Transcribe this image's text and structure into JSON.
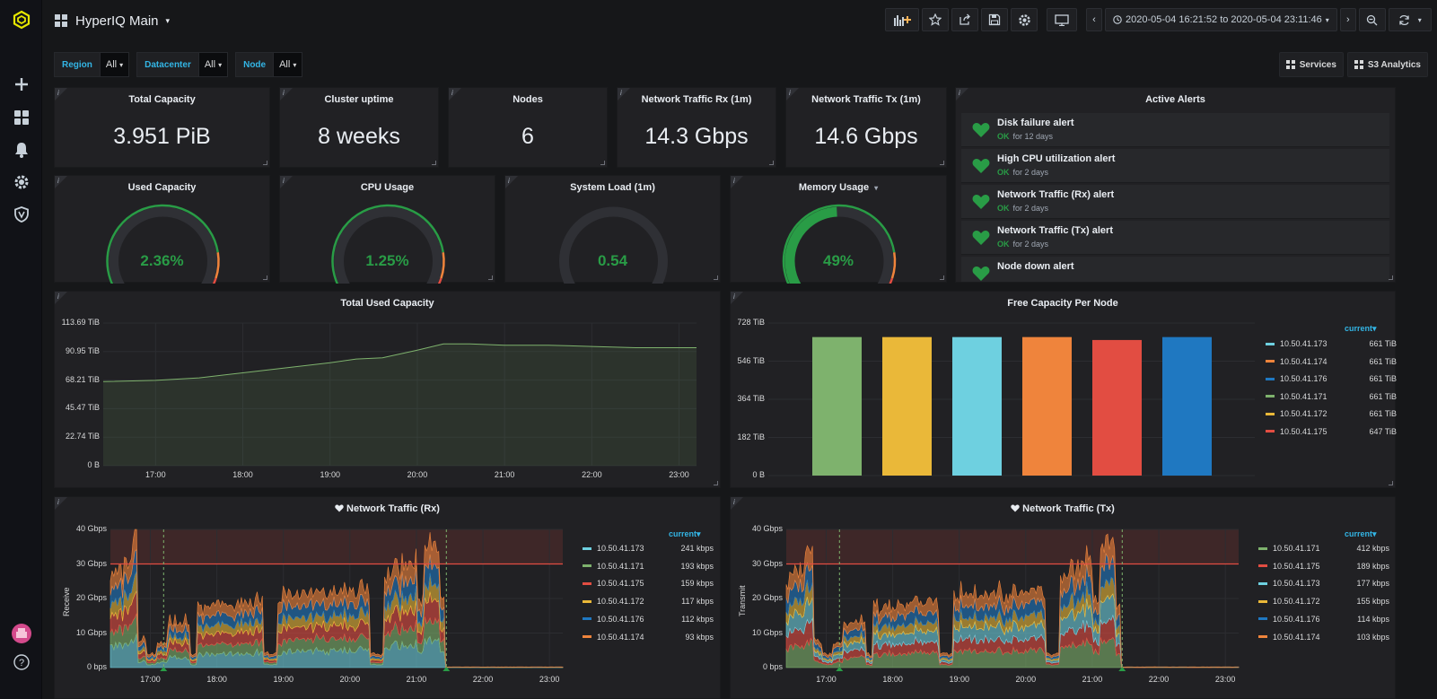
{
  "dashboard": {
    "title": "HyperIQ Main",
    "time_range": "2020-05-04 16:21:52 to 2020-05-04 23:11:46"
  },
  "sidebar": {
    "icons": [
      "logo-icon",
      "plus-icon",
      "dashboards-icon",
      "bell-icon",
      "gear-icon",
      "shield-icon"
    ],
    "bottom_icons": [
      "avatar",
      "help-icon"
    ]
  },
  "variables": [
    {
      "label": "Region",
      "value": "All"
    },
    {
      "label": "Datacenter",
      "value": "All"
    },
    {
      "label": "Node",
      "value": "All"
    }
  ],
  "links": [
    {
      "label": "Services"
    },
    {
      "label": "S3 Analytics"
    }
  ],
  "stats": [
    {
      "title": "Total Capacity",
      "value": "3.951 PiB"
    },
    {
      "title": "Cluster uptime",
      "value": "8 weeks"
    },
    {
      "title": "Nodes",
      "value": "6"
    },
    {
      "title": "Network Traffic Rx (1m)",
      "value": "14.3 Gbps"
    },
    {
      "title": "Network Traffic Tx (1m)",
      "value": "14.6 Gbps"
    }
  ],
  "gauges": [
    {
      "title": "Used Capacity",
      "value": "2.36%",
      "fraction": 0.0236
    },
    {
      "title": "CPU Usage",
      "value": "1.25%",
      "fraction": 0.0125
    },
    {
      "title": "System Load  (1m)",
      "value": "0.54",
      "fraction": 0.02
    },
    {
      "title": "Memory Usage",
      "value": "49%",
      "fraction": 0.49
    }
  ],
  "alerts": {
    "title": "Active Alerts",
    "items": [
      {
        "name": "Disk failure alert",
        "state": "OK",
        "duration": "for 12 days"
      },
      {
        "name": "High CPU utilization alert",
        "state": "OK",
        "duration": "for 2 days"
      },
      {
        "name": "Network Traffic (Rx) alert",
        "state": "OK",
        "duration": "for 2 days"
      },
      {
        "name": "Network Traffic (Tx) alert",
        "state": "OK",
        "duration": "for 2 days"
      },
      {
        "name": "Node down alert",
        "state": "",
        "duration": ""
      }
    ]
  },
  "colors": {
    "green": "#7eb26d",
    "yellow": "#eab839",
    "cyan": "#6ed0e0",
    "orange": "#ef843c",
    "red": "#e24d42",
    "blue": "#1f78c1",
    "gauge_green": "#299c46"
  },
  "chart_data": [
    {
      "type": "area",
      "title": "Total Used Capacity",
      "y_ticks": [
        "113.69 TiB",
        "90.95 TiB",
        "68.21 TiB",
        "45.47 TiB",
        "22.74 TiB",
        "0 B"
      ],
      "x_ticks": [
        "17:00",
        "18:00",
        "19:00",
        "20:00",
        "21:00",
        "22:00",
        "23:00"
      ],
      "ylim": [
        0,
        113.69
      ],
      "x": [
        16.4,
        17.0,
        17.5,
        18.0,
        18.5,
        19.0,
        19.3,
        19.6,
        20.0,
        20.3,
        20.6,
        21.0,
        21.5,
        22.0,
        22.5,
        23.0,
        23.2
      ],
      "values": [
        67,
        68,
        70,
        74,
        78,
        82,
        85,
        86,
        92,
        97,
        97,
        96,
        96,
        95,
        94,
        94,
        94
      ]
    },
    {
      "type": "bar",
      "title": "Free Capacity Per Node",
      "y_ticks": [
        "728 TiB",
        "546 TiB",
        "364 TiB",
        "182 TiB",
        "0 B"
      ],
      "ylim": [
        0,
        728
      ],
      "categories": [
        "10.50.41.171",
        "10.50.41.172",
        "10.50.41.173",
        "10.50.41.174",
        "10.50.41.175",
        "10.50.41.176"
      ],
      "values": [
        661,
        661,
        661,
        661,
        647,
        661
      ],
      "legend_head": "current",
      "legend": [
        {
          "name": "10.50.41.173",
          "value": "661 TiB",
          "color": "#6ed0e0"
        },
        {
          "name": "10.50.41.174",
          "value": "661 TiB",
          "color": "#ef843c"
        },
        {
          "name": "10.50.41.176",
          "value": "661 TiB",
          "color": "#1f78c1"
        },
        {
          "name": "10.50.41.171",
          "value": "661 TiB",
          "color": "#7eb26d"
        },
        {
          "name": "10.50.41.172",
          "value": "661 TiB",
          "color": "#eab839"
        },
        {
          "name": "10.50.41.175",
          "value": "647 TiB",
          "color": "#e24d42"
        }
      ]
    },
    {
      "type": "area",
      "title": "Network Traffic (Rx)",
      "ylabel": "Receive",
      "y_ticks": [
        "40 Gbps",
        "30 Gbps",
        "20 Gbps",
        "10 Gbps",
        "0 bps"
      ],
      "x_ticks": [
        "17:00",
        "18:00",
        "19:00",
        "20:00",
        "21:00",
        "22:00",
        "23:00"
      ],
      "ylim": [
        0,
        40
      ],
      "threshold": 30,
      "legend_head": "current",
      "legend": [
        {
          "name": "10.50.41.173",
          "value": "241 kbps",
          "color": "#6ed0e0"
        },
        {
          "name": "10.50.41.171",
          "value": "193 kbps",
          "color": "#7eb26d"
        },
        {
          "name": "10.50.41.175",
          "value": "159 kbps",
          "color": "#e24d42"
        },
        {
          "name": "10.50.41.172",
          "value": "117 kbps",
          "color": "#eab839"
        },
        {
          "name": "10.50.41.176",
          "value": "112 kbps",
          "color": "#1f78c1"
        },
        {
          "name": "10.50.41.174",
          "value": "93 kbps",
          "color": "#ef843c"
        }
      ]
    },
    {
      "type": "area",
      "title": "Network Traffic (Tx)",
      "ylabel": "Transmit",
      "y_ticks": [
        "40 Gbps",
        "30 Gbps",
        "20 Gbps",
        "10 Gbps",
        "0 bps"
      ],
      "x_ticks": [
        "17:00",
        "18:00",
        "19:00",
        "20:00",
        "21:00",
        "22:00",
        "23:00"
      ],
      "ylim": [
        0,
        40
      ],
      "threshold": 30,
      "legend_head": "current",
      "legend": [
        {
          "name": "10.50.41.171",
          "value": "412 kbps",
          "color": "#7eb26d"
        },
        {
          "name": "10.50.41.175",
          "value": "189 kbps",
          "color": "#e24d42"
        },
        {
          "name": "10.50.41.173",
          "value": "177 kbps",
          "color": "#6ed0e0"
        },
        {
          "name": "10.50.41.172",
          "value": "155 kbps",
          "color": "#eab839"
        },
        {
          "name": "10.50.41.176",
          "value": "114 kbps",
          "color": "#1f78c1"
        },
        {
          "name": "10.50.41.174",
          "value": "103 kbps",
          "color": "#ef843c"
        }
      ]
    }
  ]
}
